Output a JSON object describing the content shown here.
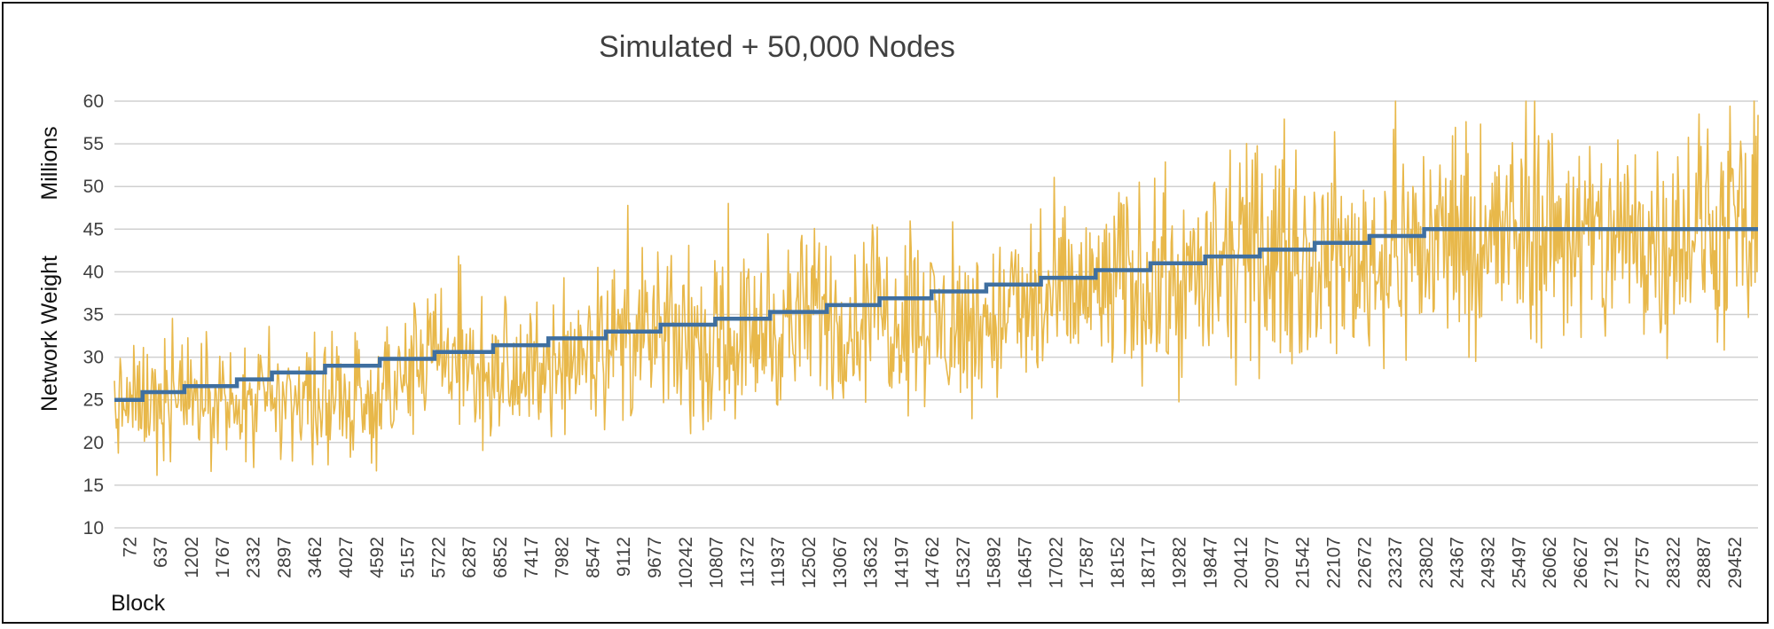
{
  "chart_data": {
    "type": "line",
    "title": "Simulated + 50,000 Nodes",
    "ylabel": "Network Weight",
    "yunit": "Millions",
    "xlabel": "Block",
    "ylim": [
      10,
      60
    ],
    "yticks": [
      10,
      15,
      20,
      25,
      30,
      35,
      40,
      45,
      50,
      55,
      60
    ],
    "grid": true,
    "legend": "none",
    "xlim": [
      72,
      30100
    ],
    "x_tick_labels": [
      "72",
      "637",
      "1202",
      "1767",
      "2332",
      "2897",
      "3462",
      "4027",
      "4592",
      "5157",
      "5722",
      "6287",
      "6852",
      "7417",
      "7982",
      "8547",
      "9112",
      "9677",
      "10242",
      "10807",
      "11372",
      "11937",
      "12502",
      "13067",
      "13632",
      "14197",
      "14762",
      "15327",
      "15892",
      "16457",
      "17022",
      "17587",
      "18152",
      "18717",
      "19282",
      "19847",
      "20412",
      "20977",
      "21542",
      "22107",
      "22672",
      "23237",
      "23802",
      "24367",
      "24932",
      "25497",
      "26062",
      "26627",
      "27192",
      "27757",
      "28322",
      "28887",
      "29452"
    ],
    "series": [
      {
        "color": "#E8B84A",
        "style": "noisy-line",
        "x": [
          72,
          637,
          1202,
          1767,
          2332,
          2897,
          3462,
          4027,
          4592,
          5157,
          5722,
          6287,
          6852,
          7417,
          7982,
          8547,
          9112,
          9677,
          10242,
          10807,
          11372,
          11937,
          12502,
          13067,
          13632,
          14197,
          14762,
          15327,
          15892,
          16457,
          17022,
          17587,
          18152,
          18717,
          19282,
          19847,
          20412,
          20977,
          21542,
          22107,
          22672,
          23237,
          23802,
          24367,
          24932,
          25497,
          26062,
          26627,
          27192,
          27757,
          28322,
          28887,
          29452,
          30017
        ],
        "values": [
          24,
          25,
          25,
          26,
          23,
          24,
          25,
          25,
          24,
          26,
          30,
          29,
          28,
          27,
          29,
          31,
          32,
          32,
          32,
          31,
          32,
          33,
          34,
          35,
          34,
          35,
          35,
          33,
          34,
          35,
          36,
          37,
          38,
          39,
          38,
          39,
          40,
          42,
          41,
          42,
          41,
          42,
          43,
          44,
          43,
          44,
          45,
          45,
          43,
          44,
          44,
          45,
          44,
          44
        ]
      },
      {
        "color": "#3F6FA0",
        "style": "step",
        "step_x": [
          72,
          585,
          1350,
          2310,
          2950,
          3920,
          4920,
          5920,
          6990,
          8000,
          9050,
          10050,
          11050,
          12050,
          13090,
          14050,
          15000,
          16000,
          17000,
          18000,
          19000,
          20000,
          21000,
          22000,
          23000,
          24000,
          25000,
          30100
        ],
        "step_y": [
          25,
          25.9,
          26.6,
          27.4,
          28.2,
          29,
          29.8,
          30.6,
          31.4,
          32.2,
          33,
          33.8,
          34.5,
          35.3,
          36.1,
          36.9,
          37.7,
          38.5,
          39.3,
          40.2,
          41,
          41.8,
          42.6,
          43.4,
          44.2,
          45,
          45
        ]
      }
    ]
  }
}
